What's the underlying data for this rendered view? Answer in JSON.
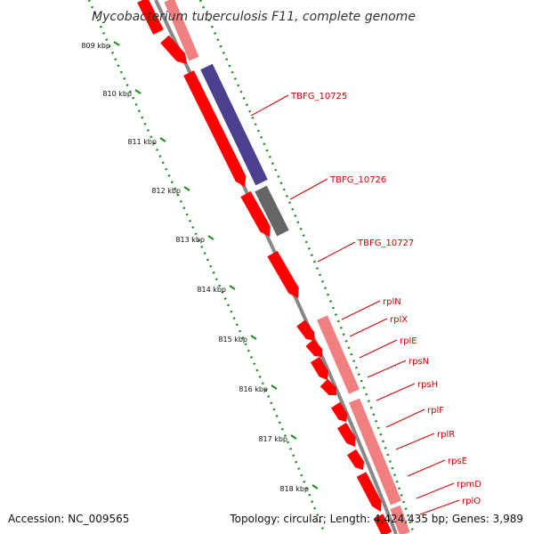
{
  "title": "Mycobacterium tuberculosis F11, complete genome",
  "footer": {
    "accession": "Accession: NC_009565",
    "summary": "Topology: circular; Length: 4,424,435 bp; Genes: 3,989"
  },
  "ruler": [
    "809 kbp",
    "810 kbp",
    "811 kbp",
    "812 kbp",
    "813 kbp",
    "814 kbp",
    "815 kbp",
    "816 kbp",
    "817 kbp",
    "818 kbp"
  ],
  "genes": [
    "TBFG_10725",
    "TBFG_10726",
    "TBFG_10727",
    "rplN",
    "rplX",
    "rplE",
    "rpsN",
    "rpsH",
    "rplF",
    "rplR",
    "rpsE",
    "rpmD",
    "rplO"
  ],
  "colors": {
    "cds_forward": "#ff0000",
    "cds_reverse": "#ff0000",
    "feature_blue": "#4b3f8f",
    "feature_gray": "#666666",
    "feature_pink": "#f08080",
    "backbone": "#888888",
    "tick_green": "#1e8c1e",
    "label_red": "#d40000"
  }
}
